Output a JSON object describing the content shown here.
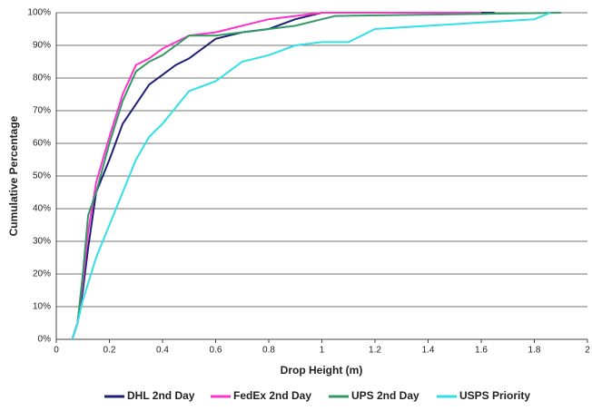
{
  "chart_data": {
    "type": "line",
    "xlabel": "Drop Height (m)",
    "ylabel": "Cumulative Percentage",
    "xlim": [
      0,
      2
    ],
    "xticks": [
      0,
      0.2,
      0.4,
      0.6,
      0.8,
      1,
      1.2,
      1.4,
      1.6,
      1.8,
      2
    ],
    "ylim": [
      0,
      100
    ],
    "yticks": [
      {
        "value": 0,
        "label": "0%"
      },
      {
        "value": 10,
        "label": "10%"
      },
      {
        "value": 20,
        "label": "20%"
      },
      {
        "value": 30,
        "label": "30%"
      },
      {
        "value": 40,
        "label": "40%"
      },
      {
        "value": 50,
        "label": "50%"
      },
      {
        "value": 60,
        "label": "60%"
      },
      {
        "value": 70,
        "label": "70%"
      },
      {
        "value": 80,
        "label": "80%"
      },
      {
        "value": 90,
        "label": "90%"
      },
      {
        "value": 100,
        "label": "100%"
      }
    ],
    "grid": true,
    "legend": "bottom",
    "series": [
      {
        "name": "DHL 2nd Day",
        "color": "#1f1f7a",
        "x": [
          0.06,
          0.08,
          0.1,
          0.12,
          0.15,
          0.2,
          0.25,
          0.3,
          0.35,
          0.4,
          0.45,
          0.5,
          0.55,
          0.6,
          0.7,
          0.8,
          0.9,
          1.0,
          1.65
        ],
        "values": [
          0,
          5,
          15,
          28,
          45,
          55,
          66,
          72,
          78,
          81,
          84,
          86,
          89,
          92,
          94,
          95,
          98,
          100,
          100
        ]
      },
      {
        "name": "FedEx 2nd Day",
        "color": "#ff33cc",
        "x": [
          0.06,
          0.08,
          0.1,
          0.12,
          0.15,
          0.2,
          0.25,
          0.3,
          0.35,
          0.4,
          0.45,
          0.5,
          0.6,
          0.7,
          0.8,
          0.9,
          1.0,
          1.6
        ],
        "values": [
          0,
          5,
          18,
          33,
          48,
          62,
          75,
          84,
          86,
          89,
          91,
          93,
          94,
          96,
          98,
          99,
          100,
          100
        ]
      },
      {
        "name": "UPS 2nd Day",
        "color": "#339966",
        "x": [
          0.06,
          0.08,
          0.1,
          0.12,
          0.15,
          0.2,
          0.25,
          0.3,
          0.35,
          0.4,
          0.45,
          0.5,
          0.6,
          0.7,
          0.8,
          0.9,
          1.0,
          1.05,
          1.9
        ],
        "values": [
          0,
          5,
          20,
          38,
          45,
          60,
          73,
          82,
          85,
          87,
          90,
          93,
          93,
          94,
          95,
          96,
          98,
          99,
          100
        ]
      },
      {
        "name": "USPS Priority",
        "color": "#33e0e8",
        "x": [
          0.06,
          0.08,
          0.1,
          0.15,
          0.2,
          0.25,
          0.3,
          0.35,
          0.4,
          0.45,
          0.5,
          0.6,
          0.7,
          0.8,
          0.9,
          1.0,
          1.1,
          1.2,
          1.4,
          1.6,
          1.8,
          1.86
        ],
        "values": [
          0,
          5,
          12,
          25,
          35,
          45,
          55,
          62,
          66,
          71,
          76,
          79,
          85,
          87,
          90,
          91,
          91,
          95,
          96,
          97,
          98,
          100
        ]
      }
    ]
  }
}
